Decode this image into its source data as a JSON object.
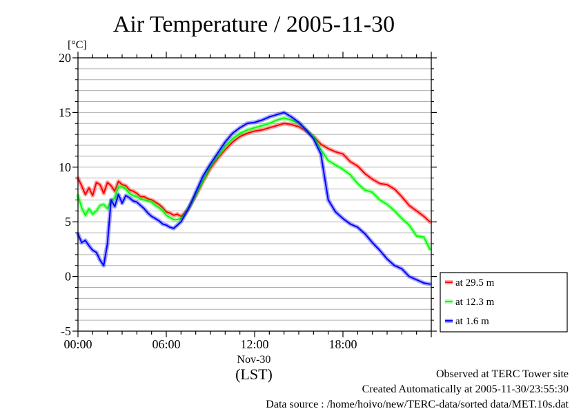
{
  "chart_data": {
    "type": "line",
    "title": "Air Temperature / 2005-11-30",
    "ylabel": "[°C]",
    "xlabel": "(LST)",
    "x_date_label": "Nov-30",
    "ylim": [
      -5,
      20
    ],
    "xlim": [
      0,
      24
    ],
    "x_unit": "hours (LST)",
    "y_ticks": [
      -5,
      0,
      5,
      10,
      15,
      20
    ],
    "x_ticks": [
      {
        "value": 0,
        "label": "00:00"
      },
      {
        "value": 6,
        "label": "06:00"
      },
      {
        "value": 12,
        "label": "12:00"
      },
      {
        "value": 18,
        "label": "18:00"
      }
    ],
    "grid": "horizontal lines every 1 °C",
    "legend_position": "right",
    "series": [
      {
        "name": "at 29.5 m",
        "color": "#ff0000",
        "x": [
          0,
          0.25,
          0.5,
          0.75,
          1,
          1.25,
          1.5,
          1.75,
          2,
          2.25,
          2.5,
          2.75,
          3,
          3.25,
          3.5,
          3.75,
          4,
          4.25,
          4.5,
          4.75,
          5,
          5.25,
          5.5,
          5.75,
          6,
          6.25,
          6.5,
          6.75,
          7,
          7.25,
          7.5,
          7.75,
          8,
          8.5,
          9,
          9.5,
          10,
          10.5,
          11,
          11.5,
          12,
          12.5,
          13,
          13.5,
          14,
          14.5,
          15,
          15.5,
          16,
          16.5,
          17,
          17.5,
          18,
          18.5,
          19,
          19.5,
          20,
          20.5,
          21,
          21.5,
          22,
          22.5,
          23,
          23.5,
          23.9
        ],
        "values": [
          9.0,
          8.3,
          7.5,
          8.1,
          7.4,
          8.6,
          8.4,
          7.6,
          8.6,
          8.3,
          7.8,
          8.7,
          8.4,
          8.3,
          7.9,
          7.8,
          7.6,
          7.3,
          7.3,
          7.1,
          7.0,
          6.8,
          6.6,
          6.3,
          5.9,
          5.8,
          5.6,
          5.7,
          5.5,
          5.8,
          6.2,
          6.8,
          7.4,
          8.7,
          9.9,
          10.8,
          11.6,
          12.3,
          12.8,
          13.1,
          13.3,
          13.4,
          13.6,
          13.8,
          14.0,
          13.9,
          13.7,
          13.3,
          12.8,
          12.1,
          11.7,
          11.4,
          11.2,
          10.5,
          10.1,
          9.4,
          8.9,
          8.5,
          8.4,
          8.0,
          7.3,
          6.5,
          6.0,
          5.5,
          5.0
        ]
      },
      {
        "name": "at 12.3 m",
        "color": "#00ff00",
        "x": [
          0,
          0.25,
          0.5,
          0.75,
          1,
          1.25,
          1.5,
          1.75,
          2,
          2.25,
          2.5,
          2.75,
          3,
          3.25,
          3.5,
          3.75,
          4,
          4.25,
          4.5,
          4.75,
          5,
          5.25,
          5.5,
          5.75,
          6,
          6.25,
          6.5,
          6.75,
          7,
          7.25,
          7.5,
          7.75,
          8,
          8.5,
          9,
          9.5,
          10,
          10.5,
          11,
          11.5,
          12,
          12.5,
          13,
          13.5,
          14,
          14.5,
          15,
          15.5,
          16,
          16.5,
          17,
          17.5,
          18,
          18.5,
          19,
          19.5,
          20,
          20.5,
          21,
          21.5,
          22,
          22.5,
          23,
          23.5,
          23.9
        ],
        "values": [
          7.4,
          6.3,
          5.6,
          6.2,
          5.7,
          6.0,
          6.5,
          6.6,
          6.2,
          6.9,
          7.2,
          8.2,
          8.2,
          8.0,
          7.6,
          7.4,
          7.3,
          7.1,
          7.0,
          6.9,
          6.8,
          6.5,
          6.3,
          6.0,
          5.6,
          5.4,
          5.2,
          5.2,
          5.3,
          5.7,
          6.2,
          6.8,
          7.5,
          8.8,
          10.1,
          11.0,
          11.9,
          12.6,
          13.1,
          13.4,
          13.6,
          13.8,
          14.0,
          14.3,
          14.5,
          14.3,
          14.0,
          13.4,
          12.8,
          11.6,
          10.6,
          10.2,
          9.8,
          9.3,
          8.5,
          7.9,
          7.7,
          7.0,
          6.6,
          6.0,
          5.3,
          4.7,
          3.7,
          3.6,
          2.5
        ]
      },
      {
        "name": "at 1.6 m",
        "color": "#0000ff",
        "x": [
          0,
          0.25,
          0.5,
          0.75,
          1,
          1.25,
          1.5,
          1.75,
          2,
          2.25,
          2.5,
          2.75,
          3,
          3.25,
          3.5,
          3.75,
          4,
          4.25,
          4.5,
          4.75,
          5,
          5.25,
          5.5,
          5.75,
          6,
          6.25,
          6.5,
          6.75,
          7,
          7.25,
          7.5,
          7.75,
          8,
          8.5,
          9,
          9.5,
          10,
          10.5,
          11,
          11.5,
          12,
          12.5,
          13,
          13.5,
          14,
          14.5,
          15,
          15.5,
          16,
          16.5,
          17,
          17.5,
          18,
          18.5,
          19,
          19.5,
          20,
          20.5,
          21,
          21.5,
          22,
          22.5,
          23,
          23.5,
          23.9
        ],
        "values": [
          3.9,
          3.1,
          3.3,
          2.8,
          2.4,
          2.2,
          1.5,
          1.0,
          3.0,
          7.0,
          6.4,
          7.5,
          6.7,
          7.4,
          7.2,
          6.9,
          6.8,
          6.5,
          6.2,
          5.8,
          5.5,
          5.3,
          5.1,
          4.8,
          4.7,
          4.5,
          4.4,
          4.7,
          5.0,
          5.6,
          6.2,
          6.9,
          7.7,
          9.2,
          10.3,
          11.3,
          12.3,
          13.1,
          13.6,
          14.0,
          14.1,
          14.3,
          14.6,
          14.8,
          15.0,
          14.6,
          14.1,
          13.4,
          12.6,
          11.2,
          7.0,
          5.9,
          5.3,
          4.8,
          4.5,
          3.9,
          3.1,
          2.4,
          1.6,
          1.0,
          0.7,
          0.0,
          -0.3,
          -0.6,
          -0.7
        ]
      }
    ]
  },
  "footer": {
    "line1": "Observed at TERC Tower site",
    "line2": "Created Automatically at 2005-11-30/23:55:30",
    "line3": "Data source : /home/hoivo/new/TERC-data/sorted  data/MET.10s.dat"
  }
}
